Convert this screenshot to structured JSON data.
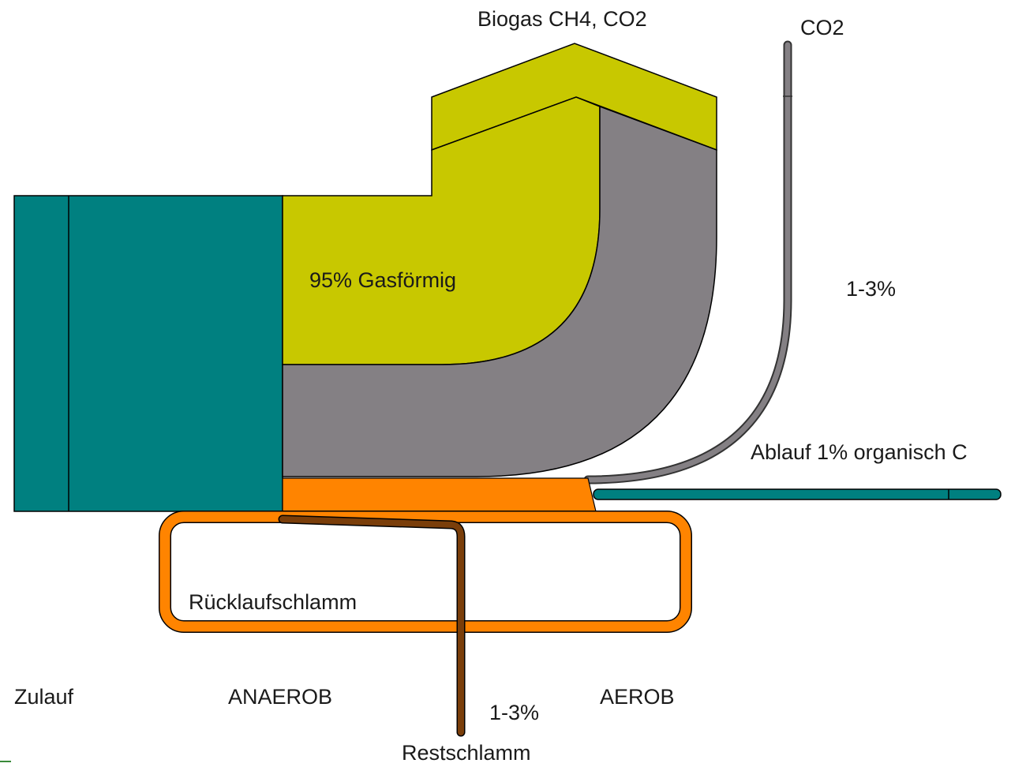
{
  "labels": {
    "biogas": "Biogas CH4, CO2",
    "co2": "CO2",
    "gasfoermig": "95% Gasförmig",
    "co2_percent": "1-3%",
    "ablauf": "Ablauf 1% organisch C",
    "ruecklaufschlamm": "Rücklaufschlamm",
    "zulauf": "Zulauf",
    "anaerob": "ANAEROB",
    "aerob": "AEROB",
    "restschlamm_percent": "1-3%",
    "restschlamm": "Restschlamm"
  },
  "colors": {
    "teal": "#008080",
    "yellow_green": "#c8c800",
    "gray": "#848084",
    "orange": "#ff8400",
    "brown": "#7a3e0a",
    "text": "#1a1a1a"
  }
}
